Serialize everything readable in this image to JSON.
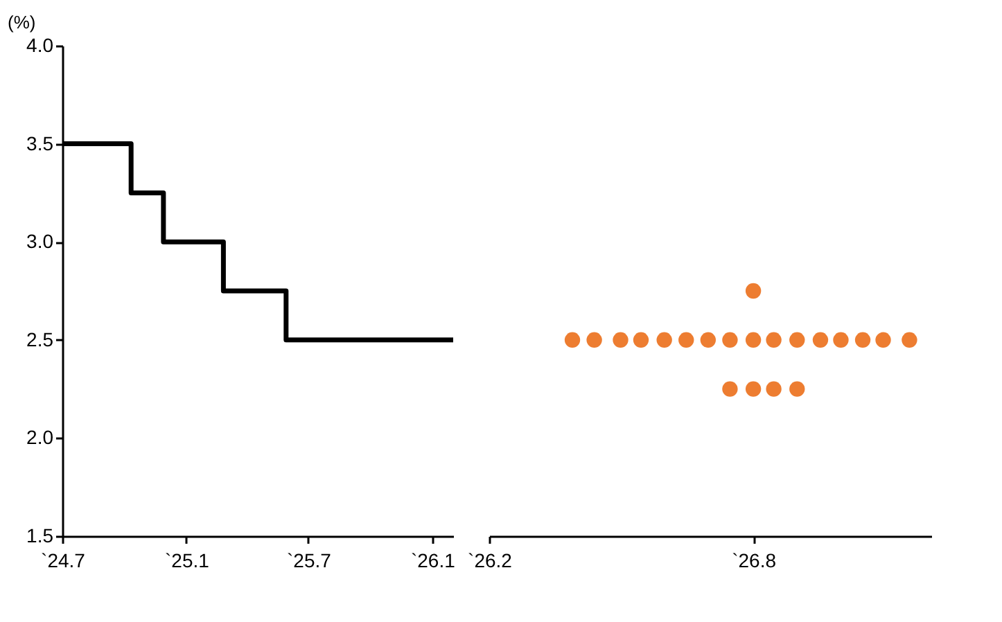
{
  "chart_data": [
    {
      "type": "step",
      "ylabel": "(%)",
      "x": [
        "2024-07-01",
        "2024-10-11",
        "2024-11-28",
        "2025-02-25",
        "2025-05-29",
        "2026-02-01"
      ],
      "series": [
        {
          "color": "#000000",
          "values": [
            3.5,
            3.25,
            3.0,
            2.75,
            2.5,
            2.5
          ]
        }
      ],
      "xlim": [
        "2024-07-01",
        "2026-02-01"
      ],
      "xticks": [
        {
          "value": "2024-07-01",
          "label": "`24.7"
        },
        {
          "value": "2025-01-01",
          "label": "`25.1"
        },
        {
          "value": "2025-07-01",
          "label": "`25.7"
        },
        {
          "value": "2026-01-01",
          "label": "`26.1"
        }
      ],
      "ylim": [
        1.5,
        4.0
      ],
      "yticks": [
        1.5,
        {
          "value": 2,
          "label": "2.0"
        },
        2.5,
        {
          "value": 3,
          "label": "3.0"
        },
        3.5,
        {
          "value": 4,
          "label": "4.0"
        }
      ],
      "grid": false,
      "marker": "none",
      "line_style": "solid"
    },
    {
      "type": "scatter",
      "x": [
        "2026-03-30",
        "2026-04-14",
        "2026-05-02",
        "2026-05-16",
        "2026-06-01",
        "2026-06-16",
        "2026-07-01",
        "2026-07-16",
        "2026-08-01",
        "2026-08-15",
        "2026-08-31",
        "2026-09-16",
        "2026-09-30",
        "2026-10-15",
        "2026-10-29",
        "2026-11-16",
        "2026-08-01",
        "2026-07-16",
        "2026-08-01",
        "2026-08-15",
        "2026-08-31"
      ],
      "series": [
        {
          "color": "#ed7d31",
          "values": [
            2.5,
            2.5,
            2.5,
            2.5,
            2.5,
            2.5,
            2.5,
            2.5,
            2.5,
            2.5,
            2.5,
            2.5,
            2.5,
            2.5,
            2.5,
            2.5,
            2.75,
            2.25,
            2.25,
            2.25,
            2.25
          ]
        }
      ],
      "xlim": [
        "2026-02-01",
        "2026-12-01"
      ],
      "xticks": [
        {
          "value": "2026-02-01",
          "label": "`26.2"
        },
        {
          "value": "2026-08-01",
          "label": "`26.8"
        }
      ],
      "ylim": [
        1.5,
        4.0
      ],
      "tick_labels": "x",
      "grid": false,
      "marker": "circle"
    }
  ]
}
